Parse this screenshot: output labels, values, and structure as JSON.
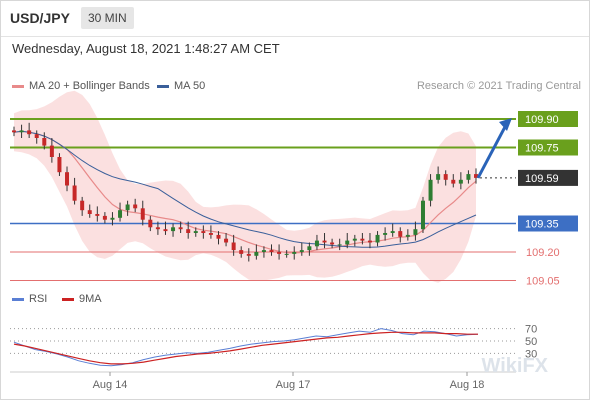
{
  "header": {
    "symbol": "USD/JPY",
    "timeframe": "30 MIN"
  },
  "datetime": "Wednesday, August 18, 2021 1:48:27 AM CET",
  "legend": {
    "ma20": "MA 20 + Bollinger Bands",
    "ma50": "MA 50",
    "rsi": "RSI",
    "ma9": "9MA"
  },
  "copyright": "Research © 2021 Trading Central",
  "watermark": "WikiFX",
  "colors": {
    "ma20": "#e88a8a",
    "ma50": "#3a5f9a",
    "band_fill": "#f9d5d5",
    "resistance": "#6aa01d",
    "support": "#3d6fc4",
    "support_minor": "#e36f6f",
    "current": "#333333",
    "rsi": "#5a7fd4",
    "rsi_ma": "#cc2222"
  },
  "chart_data": {
    "type": "candlestick",
    "title": "USD/JPY",
    "timeframe": "30 MIN",
    "x_labels": [
      "Aug 14",
      "Aug 17",
      "Aug 18"
    ],
    "ylim": [
      109.0,
      110.0
    ],
    "price_series": [
      109.83,
      109.84,
      109.82,
      109.8,
      109.76,
      109.7,
      109.62,
      109.55,
      109.47,
      109.42,
      109.4,
      109.39,
      109.37,
      109.38,
      109.42,
      109.45,
      109.43,
      109.37,
      109.33,
      109.32,
      109.31,
      109.33,
      109.32,
      109.3,
      109.31,
      109.3,
      109.29,
      109.27,
      109.25,
      109.21,
      109.19,
      109.18,
      109.2,
      109.21,
      109.2,
      109.19,
      109.19,
      109.2,
      109.21,
      109.23,
      109.26,
      109.25,
      109.24,
      109.24,
      109.26,
      109.27,
      109.26,
      109.25,
      109.29,
      109.3,
      109.31,
      109.28,
      109.29,
      109.32,
      109.47,
      109.58,
      109.61,
      109.58,
      109.56,
      109.58,
      109.61,
      109.59
    ],
    "levels": [
      {
        "value": 109.9,
        "label": "109.90",
        "kind": "resistance"
      },
      {
        "value": 109.75,
        "label": "109.75",
        "kind": "resistance"
      },
      {
        "value": 109.59,
        "label": "109.59",
        "kind": "current"
      },
      {
        "value": 109.35,
        "label": "109.35",
        "kind": "support"
      },
      {
        "value": 109.2,
        "label": "109.20",
        "kind": "support_minor"
      },
      {
        "value": 109.05,
        "label": "109.05",
        "kind": "support_minor"
      }
    ],
    "forecast_arrow": {
      "from": 109.59,
      "to": 109.9
    },
    "indicators": [
      "MA 20 + Bollinger Bands",
      "MA 50"
    ],
    "rsi": {
      "levels": [
        70,
        50,
        30
      ],
      "ylim": [
        0,
        100
      ],
      "rsi_values": [
        48,
        42,
        36,
        33,
        29,
        24,
        18,
        14,
        11,
        10,
        12,
        15,
        20,
        24,
        27,
        29,
        31,
        30,
        32,
        35,
        38,
        42,
        45,
        47,
        49,
        50,
        52,
        55,
        58,
        57,
        60,
        63,
        66,
        64,
        70,
        67,
        62,
        60,
        66,
        65,
        62,
        58,
        60,
        61
      ],
      "ma_values": [
        45,
        42,
        38,
        34,
        30,
        26,
        22,
        18,
        15,
        13,
        13,
        14,
        16,
        19,
        22,
        25,
        27,
        29,
        30,
        32,
        34,
        37,
        40,
        43,
        45,
        47,
        49,
        51,
        53,
        55,
        56,
        58,
        60,
        62,
        63,
        64,
        64,
        63,
        63,
        63,
        62,
        62,
        61,
        61
      ]
    }
  }
}
